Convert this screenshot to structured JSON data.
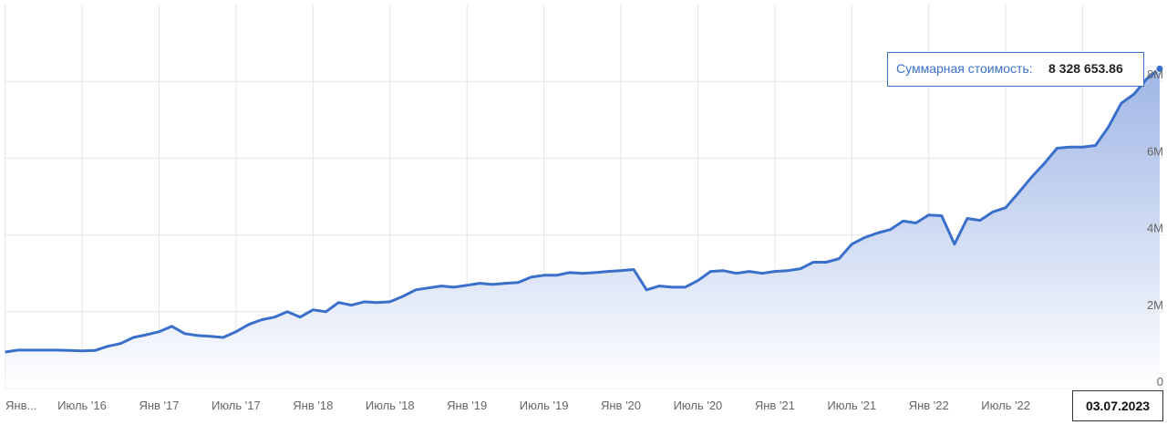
{
  "chart_data": {
    "type": "area",
    "x": [
      "2016-01",
      "2016-02",
      "2016-03",
      "2016-04",
      "2016-05",
      "2016-06",
      "2016-07",
      "2016-08",
      "2016-09",
      "2016-10",
      "2016-11",
      "2016-12",
      "2017-01",
      "2017-02",
      "2017-03",
      "2017-04",
      "2017-05",
      "2017-06",
      "2017-07",
      "2017-08",
      "2017-09",
      "2017-10",
      "2017-11",
      "2017-12",
      "2018-01",
      "2018-02",
      "2018-03",
      "2018-04",
      "2018-05",
      "2018-06",
      "2018-07",
      "2018-08",
      "2018-09",
      "2018-10",
      "2018-11",
      "2018-12",
      "2019-01",
      "2019-02",
      "2019-03",
      "2019-04",
      "2019-05",
      "2019-06",
      "2019-07",
      "2019-08",
      "2019-09",
      "2019-10",
      "2019-11",
      "2019-12",
      "2020-01",
      "2020-02",
      "2020-03",
      "2020-04",
      "2020-05",
      "2020-06",
      "2020-07",
      "2020-08",
      "2020-09",
      "2020-10",
      "2020-11",
      "2020-12",
      "2021-01",
      "2021-02",
      "2021-03",
      "2021-04",
      "2021-05",
      "2021-06",
      "2021-07",
      "2021-08",
      "2021-09",
      "2021-10",
      "2021-11",
      "2021-12",
      "2022-01",
      "2022-02",
      "2022-03",
      "2022-04",
      "2022-05",
      "2022-06",
      "2022-07",
      "2022-08",
      "2022-09",
      "2022-10",
      "2022-11",
      "2022-12",
      "2023-01",
      "2023-02",
      "2023-03",
      "2023-04",
      "2023-05",
      "2023-06",
      "2023-07"
    ],
    "series": [
      {
        "name": "Суммарная стоимость",
        "color": "#3a6fca",
        "values": [
          950000,
          1000000,
          1000000,
          1000000,
          1000000,
          990000,
          980000,
          990000,
          1100000,
          1170000,
          1330000,
          1400000,
          1480000,
          1620000,
          1430000,
          1380000,
          1360000,
          1330000,
          1480000,
          1670000,
          1790000,
          1860000,
          2000000,
          1860000,
          2050000,
          2000000,
          2240000,
          2170000,
          2260000,
          2240000,
          2260000,
          2400000,
          2570000,
          2620000,
          2670000,
          2640000,
          2690000,
          2740000,
          2710000,
          2740000,
          2760000,
          2900000,
          2950000,
          2950000,
          3020000,
          3000000,
          3020000,
          3050000,
          3070000,
          3100000,
          2570000,
          2670000,
          2640000,
          2640000,
          2810000,
          3050000,
          3070000,
          3000000,
          3050000,
          3000000,
          3050000,
          3070000,
          3120000,
          3290000,
          3290000,
          3380000,
          3760000,
          3930000,
          4050000,
          4140000,
          4360000,
          4310000,
          4520000,
          4500000,
          3760000,
          4430000,
          4380000,
          4600000,
          4710000,
          5100000,
          5500000,
          5860000,
          6260000,
          6290000,
          6290000,
          6330000,
          6810000,
          7430000,
          7670000,
          8070000,
          8328653.86
        ]
      }
    ],
    "xlim": [
      "2016-01",
      "2023-07"
    ],
    "xticks": [
      {
        "value": "2016-01",
        "label": "Янв..."
      },
      {
        "value": "2016-07",
        "label": "Июль '16"
      },
      {
        "value": "2017-01",
        "label": "Янв '17"
      },
      {
        "value": "2017-07",
        "label": "Июль '17"
      },
      {
        "value": "2018-01",
        "label": "Янв '18"
      },
      {
        "value": "2018-07",
        "label": "Июль '18"
      },
      {
        "value": "2019-01",
        "label": "Янв '19"
      },
      {
        "value": "2019-07",
        "label": "Июль '19"
      },
      {
        "value": "2020-01",
        "label": "Янв '20"
      },
      {
        "value": "2020-07",
        "label": "Июль '20"
      },
      {
        "value": "2021-01",
        "label": "Янв '21"
      },
      {
        "value": "2021-07",
        "label": "Июль '21"
      },
      {
        "value": "2022-01",
        "label": "Янв '22"
      },
      {
        "value": "2022-07",
        "label": "Июль '22"
      },
      {
        "value": "2023-01",
        "label": "Я"
      }
    ],
    "ylim": [
      0,
      10000000
    ],
    "yticks": [
      0,
      {
        "value": 2000000,
        "label": "2M"
      },
      {
        "value": 4000000,
        "label": "4M"
      },
      {
        "value": 6000000,
        "label": "6M"
      },
      {
        "value": 8000000,
        "label": "8M"
      }
    ],
    "grid": true,
    "tooltip": {
      "label": "Суммарная стоимость:",
      "value_label": "8 328 653.86",
      "date": "03.07.2023"
    }
  }
}
